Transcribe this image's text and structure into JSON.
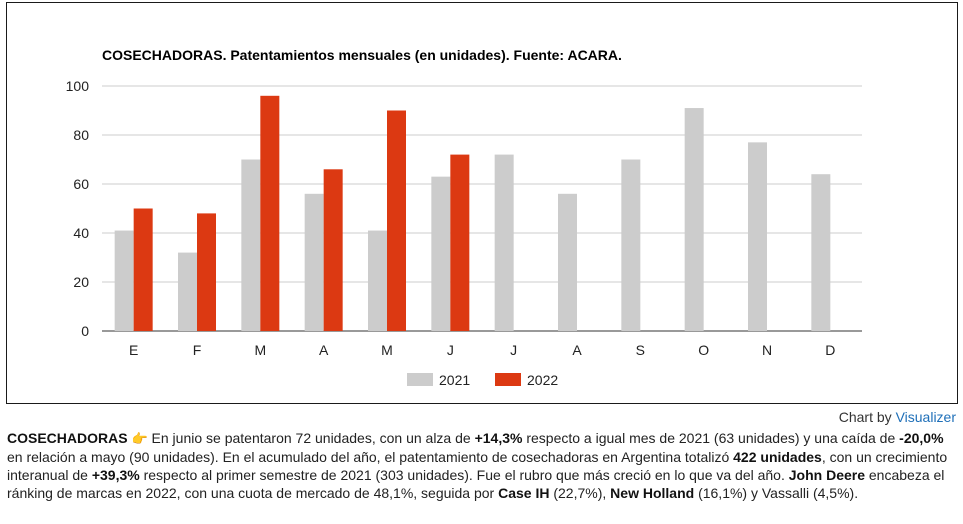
{
  "chart_data": {
    "type": "bar",
    "title": "COSECHADORAS. Patentamientos mensuales (en unidades). Fuente: ACARA.",
    "categories": [
      "E",
      "F",
      "M",
      "A",
      "M",
      "J",
      "J",
      "A",
      "S",
      "O",
      "N",
      "D"
    ],
    "series": [
      {
        "name": "2021",
        "color": "#cccccc",
        "values": [
          41,
          32,
          70,
          56,
          41,
          63,
          72,
          56,
          70,
          91,
          77,
          64
        ]
      },
      {
        "name": "2022",
        "color": "#dc3912",
        "values": [
          50,
          48,
          96,
          66,
          90,
          72,
          null,
          null,
          null,
          null,
          null,
          null
        ]
      }
    ],
    "yticks": [
      0,
      20,
      40,
      60,
      80,
      100
    ],
    "ylim": [
      0,
      100
    ],
    "grid": true,
    "legend_position": "bottom"
  },
  "credit": {
    "prefix": "Chart by ",
    "link": "Visualizer"
  },
  "caption": {
    "heading": "COSECHADORAS",
    "icon": "pointing-hand-icon",
    "t1": " En junio se patentaron 72 unidades, con un alza de ",
    "b1": "+14,3%",
    "t2": " respecto a igual mes de 2021 (63 unidades) y una caída de ",
    "b2": "-20,0%",
    "t3": " en relación a mayo (90 unidades). En el acumulado del año, el patentamiento de cosechadoras en Argentina totalizó ",
    "b3": "422 unidades",
    "t4": ", con un crecimiento interanual de ",
    "b4": "+39,3%",
    "t5": " respecto al primer semestre de 2021 (303 unidades). Fue el rubro que más creció en lo que va del año. ",
    "b5": "John Deere",
    "t6": " encabeza el ránking de marcas en 2022, con una cuota de mercado de 48,1%, seguida por ",
    "b6": "Case IH",
    "t7": " (22,7%), ",
    "b7": "New Holland",
    "t8": " (16,1%) y Vassalli (4,5%)."
  }
}
